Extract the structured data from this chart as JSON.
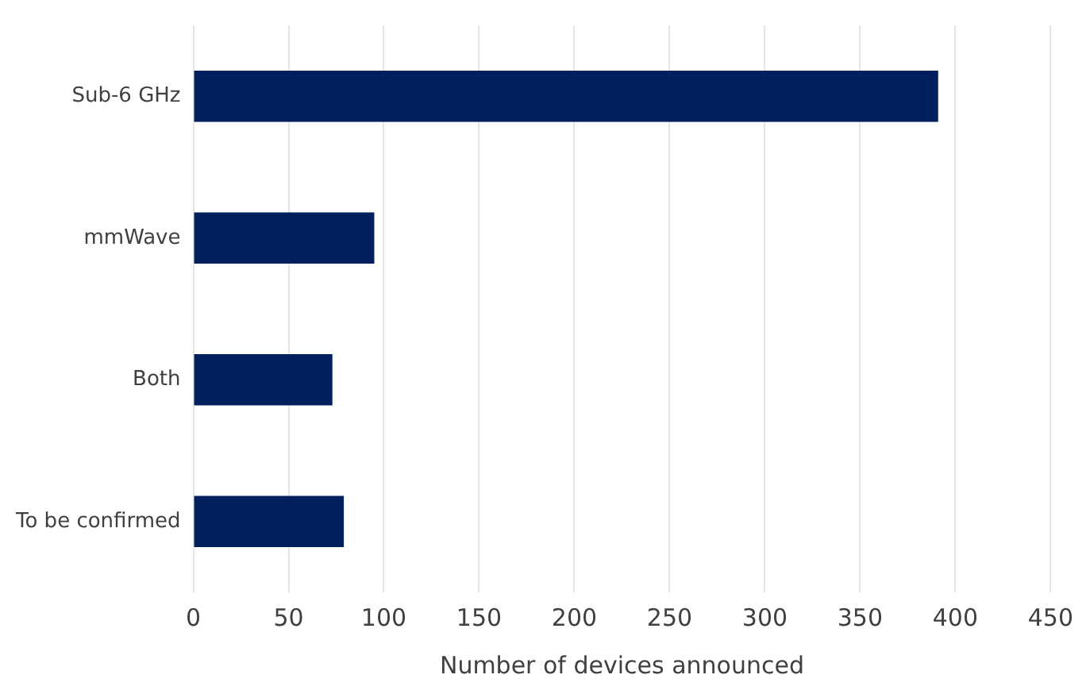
{
  "chart_data": {
    "type": "bar",
    "orientation": "horizontal",
    "xlabel": "Number of devices announced",
    "categories": [
      "Sub-6 GHz",
      "mmWave",
      "Both",
      "To be confirmed"
    ],
    "values": [
      391,
      95,
      73,
      79
    ],
    "color": "#001f5c",
    "xlim": [
      0,
      450
    ],
    "xticks": [
      0,
      50,
      100,
      150,
      200,
      250,
      300,
      350,
      400,
      450
    ],
    "grid": "x",
    "legend": false
  }
}
